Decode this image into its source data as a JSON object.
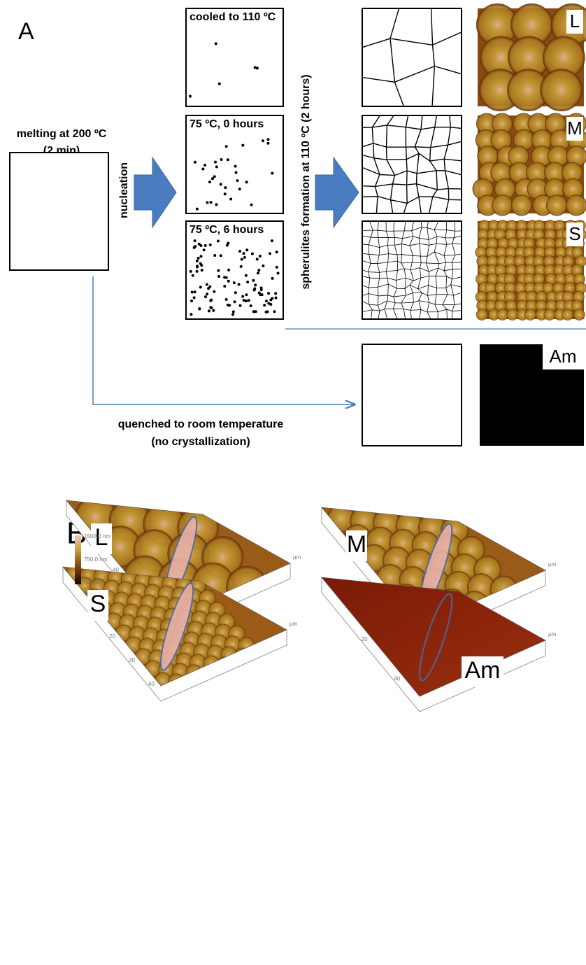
{
  "panel_a": {
    "label": "A",
    "melt": {
      "line1": "melting at 200 ºC",
      "line2": "(2 min)"
    },
    "nucleation": "nucleation",
    "conditions": [
      "cooled to 110 ºC",
      "75 ºC, 0 hours",
      "75 ºC, 6 hours"
    ],
    "growth": "spherulites formation at 110 ºC  (2 hours)",
    "quench": {
      "line1": "quenched to room temperature",
      "line2": "(no crystallization)"
    },
    "morphologies": [
      "L",
      "M",
      "S",
      "Am"
    ]
  },
  "panel_b": {
    "label": "B",
    "colorbar": [
      "1500.0 nm",
      "750.0 nm",
      "0.0 nm"
    ],
    "unit": "µm",
    "plots": [
      {
        "label": "L",
        "ticks": [
          "20",
          "40",
          "60",
          "80"
        ]
      },
      {
        "label": "M",
        "ticks": [
          "10",
          "20",
          "30"
        ]
      },
      {
        "label": "S",
        "ticks": [
          "10",
          "20",
          "30",
          "40"
        ]
      },
      {
        "label": "Am",
        "ticks": [
          "20",
          "40"
        ]
      }
    ]
  }
}
